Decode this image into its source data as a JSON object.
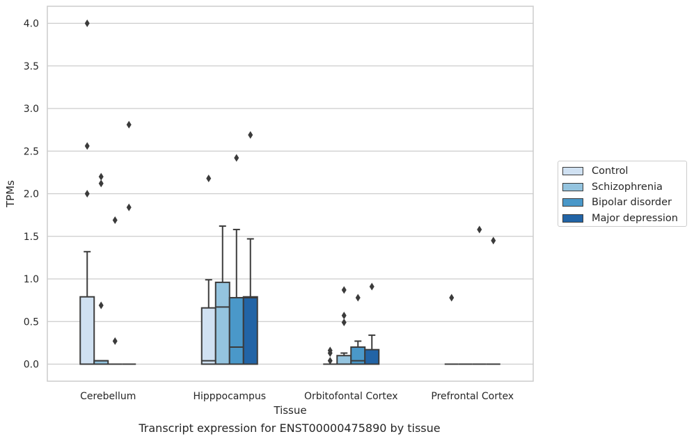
{
  "caption": "Transcript expression for ENST00000475890 by tissue",
  "chart_data": {
    "type": "boxplot",
    "xlabel": "Tissue",
    "ylabel": "TPMs",
    "ylim": [
      -0.2,
      4.2
    ],
    "yticks": [
      "0.0",
      "0.5",
      "1.0",
      "1.5",
      "2.0",
      "2.5",
      "3.0",
      "3.5",
      "4.0"
    ],
    "grid": "horizontal",
    "legend_position": "right",
    "categories": [
      "Cerebellum",
      "Hipppocampus",
      "Orbitofontal Cortex",
      "Prefrontal Cortex"
    ],
    "series": [
      {
        "name": "Control",
        "color": "#d0e1f2",
        "boxes": [
          {
            "q1": 0.0,
            "median": 0.0,
            "q3": 0.79,
            "whisker_low": 0.0,
            "whisker_high": 1.32,
            "outliers": [
              4.0,
              2.56,
              2.0
            ]
          },
          {
            "q1": 0.0,
            "median": 0.04,
            "q3": 0.66,
            "whisker_low": 0.0,
            "whisker_high": 0.99,
            "outliers": [
              2.18
            ]
          },
          {
            "q1": 0.0,
            "median": 0.0,
            "q3": 0.0,
            "whisker_low": 0.0,
            "whisker_high": 0.0,
            "outliers": [
              0.16,
              0.13,
              0.04
            ]
          },
          {
            "q1": 0.0,
            "median": 0.0,
            "q3": 0.0,
            "whisker_low": 0.0,
            "whisker_high": 0.0,
            "outliers": [
              0.78
            ]
          }
        ]
      },
      {
        "name": "Schizophrenia",
        "color": "#94c4df",
        "boxes": [
          {
            "q1": 0.0,
            "median": 0.04,
            "q3": 0.04,
            "whisker_low": 0.0,
            "whisker_high": 0.04,
            "outliers": [
              2.2,
              2.12,
              0.69
            ]
          },
          {
            "q1": 0.0,
            "median": 0.67,
            "q3": 0.96,
            "whisker_low": 0.0,
            "whisker_high": 1.62,
            "outliers": []
          },
          {
            "q1": 0.0,
            "median": 0.0,
            "q3": 0.1,
            "whisker_low": 0.0,
            "whisker_high": 0.13,
            "outliers": [
              0.87,
              0.57,
              0.49
            ]
          },
          {
            "q1": 0.0,
            "median": 0.0,
            "q3": 0.0,
            "whisker_low": 0.0,
            "whisker_high": 0.0,
            "outliers": []
          }
        ]
      },
      {
        "name": "Bipolar disorder",
        "color": "#4a98c9",
        "boxes": [
          {
            "q1": 0.0,
            "median": 0.0,
            "q3": 0.0,
            "whisker_low": 0.0,
            "whisker_high": 0.0,
            "outliers": [
              1.69,
              0.27
            ]
          },
          {
            "q1": 0.0,
            "median": 0.2,
            "q3": 0.78,
            "whisker_low": 0.0,
            "whisker_high": 1.58,
            "outliers": [
              2.42
            ]
          },
          {
            "q1": 0.0,
            "median": 0.04,
            "q3": 0.2,
            "whisker_low": 0.0,
            "whisker_high": 0.27,
            "outliers": [
              0.78
            ]
          },
          {
            "q1": 0.0,
            "median": 0.0,
            "q3": 0.0,
            "whisker_low": 0.0,
            "whisker_high": 0.0,
            "outliers": [
              1.58
            ]
          }
        ]
      },
      {
        "name": "Major depression",
        "color": "#2264a6",
        "boxes": [
          {
            "q1": 0.0,
            "median": 0.0,
            "q3": 0.0,
            "whisker_low": 0.0,
            "whisker_high": 0.0,
            "outliers": [
              2.81,
              1.84
            ]
          },
          {
            "q1": 0.0,
            "median": 0.78,
            "q3": 0.79,
            "whisker_low": 0.0,
            "whisker_high": 1.47,
            "outliers": [
              2.69
            ]
          },
          {
            "q1": 0.0,
            "median": 0.0,
            "q3": 0.17,
            "whisker_low": 0.0,
            "whisker_high": 0.34,
            "outliers": [
              0.91
            ]
          },
          {
            "q1": 0.0,
            "median": 0.0,
            "q3": 0.0,
            "whisker_low": 0.0,
            "whisker_high": 0.0,
            "outliers": [
              1.45
            ]
          }
        ]
      }
    ]
  }
}
